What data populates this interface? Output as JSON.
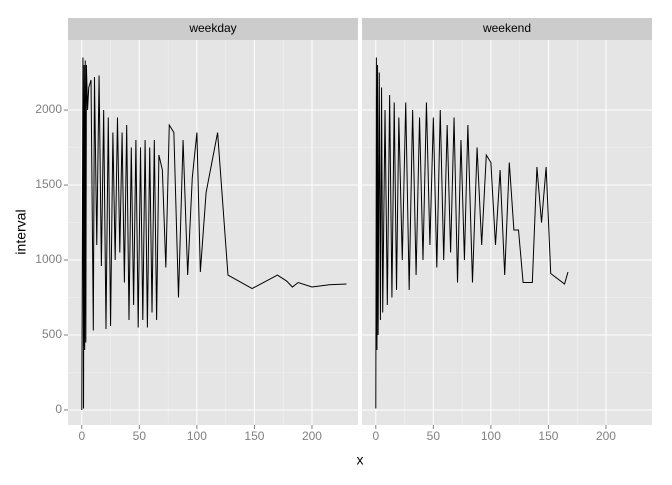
{
  "chart_data": {
    "type": "line",
    "xlabel": "x",
    "ylabel": "interval",
    "xlim": [
      -12,
      240
    ],
    "xticks": [
      0,
      50,
      100,
      150,
      200
    ],
    "ylim": [
      -100,
      2467
    ],
    "yticks": [
      0,
      500,
      1000,
      1500,
      2000
    ],
    "grid": true,
    "color": "#000000",
    "panels": [
      {
        "title": "weekday",
        "x": [
          0,
          1,
          1.5,
          2,
          2.5,
          3,
          3.5,
          4,
          5,
          6,
          8,
          10,
          11,
          13,
          15,
          17,
          19,
          21,
          23,
          25,
          27,
          29,
          31,
          33,
          35,
          37,
          39,
          41,
          43,
          45,
          47,
          49,
          51,
          53,
          55,
          57,
          59,
          61,
          63,
          65,
          67,
          70,
          73,
          76,
          80,
          84,
          88,
          92,
          96,
          100,
          103,
          108,
          113,
          118,
          127,
          148,
          170,
          178,
          183,
          188,
          200,
          215,
          230
        ],
        "values": [
          0,
          2350,
          10,
          2300,
          400,
          2330,
          450,
          2300,
          2000,
          2150,
          2200,
          530,
          2220,
          1100,
          2230,
          960,
          2000,
          540,
          1950,
          560,
          1850,
          1000,
          1950,
          1050,
          1850,
          850,
          1900,
          600,
          1750,
          700,
          1800,
          550,
          1750,
          600,
          1800,
          550,
          1750,
          650,
          1800,
          600,
          1700,
          1600,
          950,
          1900,
          1850,
          750,
          1800,
          900,
          1550,
          1850,
          920,
          1450,
          1650,
          1850,
          900,
          810,
          900,
          860,
          820,
          850,
          820,
          835,
          840
        ]
      },
      {
        "title": "weekend",
        "x": [
          0,
          0.5,
          1,
          1.5,
          2,
          3,
          4,
          5,
          6,
          8,
          10,
          12,
          14,
          16,
          18,
          20,
          23,
          26,
          29,
          32,
          35,
          38,
          41,
          44,
          47,
          50,
          53,
          56,
          59,
          62,
          65,
          68,
          71,
          74,
          77,
          80,
          84,
          88,
          92,
          96,
          100,
          104,
          108,
          112,
          116,
          120,
          124,
          128,
          132,
          136,
          140,
          144,
          148,
          152,
          164,
          167
        ],
        "values": [
          10,
          2350,
          400,
          2300,
          500,
          2250,
          600,
          2150,
          650,
          2000,
          700,
          2100,
          750,
          2050,
          800,
          1950,
          1000,
          2050,
          800,
          2000,
          900,
          1950,
          1000,
          2050,
          1100,
          1950,
          950,
          2000,
          1000,
          1900,
          1050,
          1950,
          850,
          1800,
          1000,
          1900,
          850,
          1750,
          1100,
          1700,
          1650,
          1100,
          1600,
          900,
          1650,
          1200,
          1200,
          850,
          850,
          850,
          1620,
          1250,
          1620,
          910,
          840,
          920
        ]
      }
    ]
  }
}
